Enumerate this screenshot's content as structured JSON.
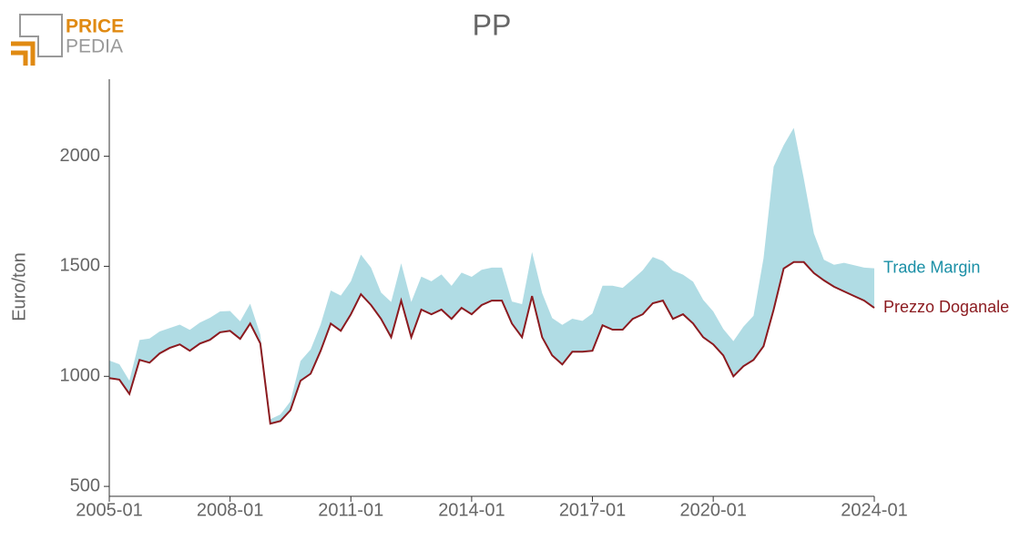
{
  "chart_data": {
    "type": "line",
    "title": "PP",
    "logo": [
      "PRICE",
      "PEDIA"
    ],
    "ylabel": "Euro/ton",
    "x": [
      "2005-01",
      "2005-04",
      "2005-07",
      "2005-10",
      "2006-01",
      "2006-04",
      "2006-07",
      "2006-10",
      "2007-01",
      "2007-04",
      "2007-07",
      "2007-10",
      "2008-01",
      "2008-04",
      "2008-07",
      "2008-10",
      "2009-01",
      "2009-04",
      "2009-07",
      "2009-10",
      "2010-01",
      "2010-04",
      "2010-07",
      "2010-10",
      "2011-01",
      "2011-04",
      "2011-07",
      "2011-10",
      "2012-01",
      "2012-04",
      "2012-07",
      "2012-10",
      "2013-01",
      "2013-04",
      "2013-07",
      "2013-10",
      "2014-01",
      "2014-04",
      "2014-07",
      "2014-10",
      "2015-01",
      "2015-04",
      "2015-07",
      "2015-10",
      "2016-01",
      "2016-04",
      "2016-07",
      "2016-10",
      "2017-01",
      "2017-04",
      "2017-07",
      "2017-10",
      "2018-01",
      "2018-04",
      "2018-07",
      "2018-10",
      "2019-01",
      "2019-04",
      "2019-07",
      "2019-10",
      "2020-01",
      "2020-04",
      "2020-07",
      "2020-10",
      "2021-01",
      "2021-04",
      "2021-07",
      "2021-10",
      "2022-01",
      "2022-04",
      "2022-07",
      "2022-10",
      "2023-01",
      "2023-04",
      "2023-07",
      "2023-10",
      "2024-01"
    ],
    "series": [
      {
        "name": "Prezzo Doganale",
        "color": "#8b1a1f",
        "style": "line",
        "values": [
          992,
          985,
          920,
          1075,
          1062,
          1104,
          1129,
          1145,
          1116,
          1149,
          1166,
          1200,
          1207,
          1170,
          1240,
          1150,
          785,
          797,
          846,
          980,
          1012,
          1116,
          1240,
          1207,
          1282,
          1373,
          1324,
          1261,
          1178,
          1344,
          1178,
          1303,
          1282,
          1303,
          1261,
          1311,
          1282,
          1324,
          1344,
          1344,
          1240,
          1178,
          1365,
          1178,
          1095,
          1054,
          1112,
          1112,
          1116,
          1232,
          1212,
          1212,
          1261,
          1282,
          1332,
          1344,
          1261,
          1282,
          1240,
          1178,
          1145,
          1095,
          1000,
          1046,
          1075,
          1137,
          1303,
          1490,
          1519,
          1519,
          1469,
          1436,
          1407,
          1386,
          1365,
          1344,
          1311
        ]
      },
      {
        "name": "Trade Margin",
        "color": "#b0dce4",
        "label_color": "#1a8fa6",
        "style": "stacked-band",
        "values": [
          80,
          70,
          60,
          90,
          110,
          100,
          90,
          90,
          95,
          95,
          100,
          95,
          90,
          80,
          90,
          40,
          20,
          30,
          40,
          90,
          110,
          120,
          150,
          160,
          150,
          180,
          170,
          120,
          160,
          170,
          160,
          150,
          150,
          160,
          150,
          160,
          170,
          160,
          150,
          150,
          100,
          150,
          200,
          200,
          170,
          180,
          150,
          140,
          170,
          180,
          200,
          190,
          180,
          200,
          210,
          180,
          220,
          180,
          190,
          170,
          150,
          120,
          160,
          180,
          200,
          400,
          650,
          560,
          610,
          380,
          180,
          94,
          100,
          130,
          140,
          150,
          180
        ]
      }
    ],
    "xlim": [
      "2005-01",
      "2024-01"
    ],
    "xticks": [
      "2005-01",
      "2008-01",
      "2011-01",
      "2014-01",
      "2017-01",
      "2020-01",
      "2024-01"
    ],
    "ylim": [
      455,
      2350
    ],
    "yticks": [
      500,
      1000,
      1500,
      2000
    ]
  }
}
